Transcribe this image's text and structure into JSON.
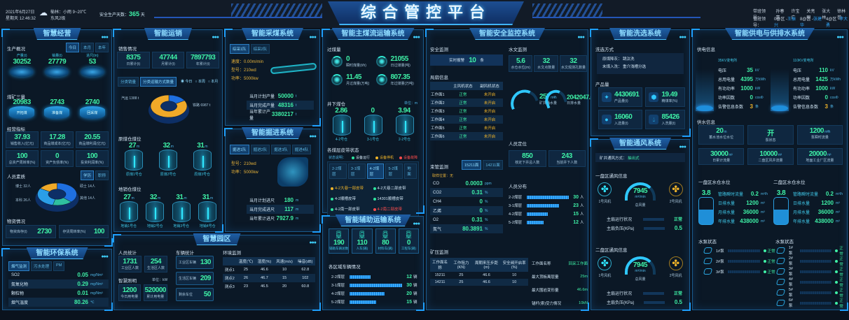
{
  "colors": {
    "accent": "#1ea0ff",
    "value": "#3ef0a6",
    "warn": "#f0b429",
    "fault": "#ff4d4d",
    "bg": "#0a121d"
  },
  "header": {
    "date": "2021年6月27日",
    "weekday_time": "星期天 12:46:32",
    "weather_icon": "rain-cloud-icon",
    "weather": "榆林：小雨   9~20℃",
    "wind": "东风2级",
    "safety_label": "安全生产天数：",
    "safety_days": "365",
    "safety_unit": "天",
    "title": "综合管控平台",
    "leaders_label": "带班领导：",
    "leaders": [
      "孙春富",
      "许宝广",
      "关亮明",
      "张大林",
      "徐林苟"
    ],
    "duty_label": "值班领导：",
    "duty": [
      {
        "area": "0@区 -",
        "name": "王振兴"
      },
      {
        "area": "8@区 -",
        "name": "张建华"
      },
      {
        "area": "4@区 -",
        "name": "李大勇"
      }
    ]
  },
  "mgmt": {
    "title": "智慧经营",
    "production": {
      "title": "生产概况",
      "tabs": [
        {
          "label": "今日",
          "active": true
        },
        {
          "label": "本月"
        },
        {
          "label": "本年"
        }
      ],
      "items": [
        {
          "label": "产量(t)",
          "value": "30252"
        },
        {
          "label": "销量(t)",
          "value": "27779"
        },
        {
          "label": "进尺(m)",
          "value": "53"
        }
      ]
    },
    "three": {
      "title": "煤矿三量",
      "items": [
        {
          "label": "开拓煤",
          "value": "20983"
        },
        {
          "label": "准备煤",
          "value": "2743"
        },
        {
          "label": "回采煤",
          "value": "2740"
        }
      ]
    },
    "indicators": {
      "title": "经营指标",
      "items": [
        {
          "value": "37.93",
          "label": "销售收入(亿元)"
        },
        {
          "value": "17.28",
          "label": "商品煤成本(亿元)"
        },
        {
          "value": "20.55",
          "label": "商品煤利润(亿元)"
        },
        {
          "value": "100",
          "label": "总资产周转率(%)"
        },
        {
          "value": "0",
          "label": "资产负债率(%)"
        },
        {
          "value": "100",
          "label": "投资利润率(%)"
        }
      ]
    },
    "staff": {
      "title": "人员素质",
      "tabs": [
        {
          "label": "学历",
          "active": true
        },
        {
          "label": "职称"
        }
      ],
      "pie": [
        {
          "label": "博士 32人",
          "value": 32,
          "color": "#1f6fe0"
        },
        {
          "label": "硕士 14人",
          "value": 14,
          "color": "#2fbf9f"
        },
        {
          "label": "本科 26人",
          "value": 26,
          "color": "#2a9ee8"
        },
        {
          "label": "其他 14人",
          "value": 14,
          "color": "#f0a928"
        }
      ]
    },
    "materials": {
      "title": "物资情况",
      "items": [
        {
          "label": "物资库存(t)",
          "value": "2730"
        },
        {
          "label": "存货周转率(%)",
          "value": "100"
        }
      ]
    }
  },
  "env": {
    "title": "智能环保系统",
    "tabs": [
      {
        "label": "烟气监测",
        "active": true
      },
      {
        "label": "污水处理"
      },
      {
        "label": "PM"
      }
    ],
    "rows": [
      {
        "label": "SO2",
        "value": "0.05",
        "unit": "mg/Nm³"
      },
      {
        "label": "氮氧化物",
        "value": "0.29",
        "unit": "mg/Nm³"
      },
      {
        "label": "颗粒物",
        "value": "0.01",
        "unit": "mg/Nm³"
      },
      {
        "label": "烟气温度",
        "value": "80.26",
        "unit": "℃"
      }
    ]
  },
  "sales": {
    "title": "智能运销",
    "sec": "销售情况",
    "tiles": [
      {
        "value": "8375",
        "label": "日累计(t)"
      },
      {
        "value": "47744",
        "label": "月累计(t)"
      },
      {
        "value": "7897793",
        "label": "年累计(t)"
      }
    ],
    "tabs": [
      {
        "label": "分类销量"
      },
      {
        "label": "分类运输方式数量",
        "active": true
      }
    ],
    "radios": [
      {
        "label": "今日",
        "checked": true
      },
      {
        "label": "本周"
      },
      {
        "label": "本月"
      }
    ],
    "pie": [
      {
        "label": "汽运 1388 t",
        "value": 1388,
        "color": "#1f6fe0"
      },
      {
        "label": "铁路 6987 t",
        "value": 6987,
        "color": "#f0a928"
      }
    ],
    "raw_bins": {
      "title": "原煤仓煤位",
      "items": [
        {
          "value": "27",
          "unit": "m",
          "label": "原煤1号仓"
        },
        {
          "value": "32",
          "unit": "m",
          "label": "原煤2号仓"
        },
        {
          "value": "31",
          "unit": "m",
          "label": "原煤3号仓"
        }
      ]
    },
    "local_bins": {
      "title": "地销仓煤位",
      "items": [
        {
          "value": "27",
          "unit": "m",
          "label": "地销1号仓"
        },
        {
          "value": "32",
          "unit": "m",
          "label": "地销2号仓"
        },
        {
          "value": "31",
          "unit": "m",
          "label": "地销3号仓"
        },
        {
          "value": "31",
          "unit": "m",
          "label": "地销4号仓"
        }
      ]
    }
  },
  "mining": {
    "title": "智能采煤系统",
    "tabs": [
      {
        "label": "综采1队",
        "active": true
      },
      {
        "label": "综采2队"
      }
    ],
    "specs": [
      "速度：0.00m/min",
      "型号：210wd",
      "功率：5000kw"
    ],
    "rows": [
      {
        "label": "当月计划产量",
        "value": "50000",
        "unit": "t"
      },
      {
        "label": "当月完成产量",
        "value": "48316",
        "unit": "t"
      },
      {
        "label": "当年累计产量",
        "value": "3380217",
        "unit": "t"
      }
    ]
  },
  "tunnel": {
    "title": "智能掘进系统",
    "tabs": [
      {
        "label": "掘进1队",
        "active": true
      },
      {
        "label": "掘进2队"
      },
      {
        "label": "掘进3队"
      },
      {
        "label": "掘进4队"
      }
    ],
    "specs": [
      "型号：210wd",
      "功率：5000kw"
    ],
    "rows": [
      {
        "label": "当月计划进尺",
        "value": "180",
        "unit": "m"
      },
      {
        "label": "当月完成进尺",
        "value": "117",
        "unit": "m"
      },
      {
        "label": "当年累计进尺",
        "value": "7927.9",
        "unit": "m"
      }
    ]
  },
  "park": {
    "title": "智慧园区",
    "people": {
      "title": "人员统计",
      "items": [
        {
          "value": "1731",
          "label": "工业区人数"
        },
        {
          "value": "254",
          "label": "生活区人数"
        }
      ]
    },
    "lighting": {
      "title": "智慧照明",
      "unit": "单位：kW",
      "items": [
        {
          "value": "1200",
          "label": "今日用电量"
        },
        {
          "value": "520000",
          "label": "累计用电量"
        }
      ]
    },
    "vehicles": {
      "title": "车辆统计",
      "items": [
        {
          "label": "工业区车辆",
          "value": "130"
        },
        {
          "label": "生活区车辆",
          "value": "209"
        },
        {
          "label": "剩余车位",
          "value": "50"
        }
      ]
    },
    "environment": {
      "title": "环境监测",
      "headers": [
        "",
        "温度(℃)",
        "湿度(%)",
        "风速(m/s)",
        "噪音(dB)"
      ],
      "rows": [
        [
          "测点1",
          "25",
          "46.6",
          "10",
          "62.8"
        ],
        [
          "测点2",
          "26",
          "46.7",
          "15",
          "102"
        ],
        [
          "测点3",
          "23",
          "46.5",
          "20",
          "60.8"
        ]
      ]
    }
  },
  "conveyor": {
    "title": "智能主煤流运输系统",
    "flow_title": "过煤量",
    "flow": [
      {
        "value": "0",
        "label": "瞬时煤量(t/h)"
      },
      {
        "value": "21055",
        "label": "日过煤量(吨)"
      },
      {
        "value": "11.45",
        "label": "月过煤量(万吨)"
      },
      {
        "value": "807.35",
        "label": "年过煤量(万吨)"
      }
    ],
    "bins_title": "井下煤仓",
    "bins_unit": "单位：m",
    "bins": [
      {
        "value": "2.86",
        "unit": "",
        "label": "4-2号仓"
      },
      {
        "value": "0",
        "unit": "",
        "label": "3-1号仓"
      },
      {
        "value": "3.94",
        "unit": "",
        "label": "2-2号仓"
      }
    ],
    "belt_title": "各煤层皮带状态",
    "legend_label": "状态说明：",
    "legend": [
      {
        "label": "设备运行",
        "status": "running"
      },
      {
        "label": "设备停机",
        "status": "stopped"
      },
      {
        "label": "设备故障",
        "status": "fault"
      }
    ],
    "status_colors": {
      "running": "#2ee6a0",
      "stopped": "#f0b429",
      "fault": "#ff4d4d"
    },
    "tabs": [
      {
        "label": "2-2煤层"
      },
      {
        "label": "3-1煤层"
      },
      {
        "label": "4-2煤层",
        "active": true
      },
      {
        "label": "5-2煤层"
      },
      {
        "label": "地面"
      }
    ],
    "belts": [
      {
        "label": "4-2大巷一部皮带",
        "status": "stopped"
      },
      {
        "label": "4-2大巷二部皮带",
        "status": "running"
      },
      {
        "label": "4-2顺槽皮带",
        "status": "running"
      },
      {
        "label": "14301顺槽皮带",
        "status": "running"
      },
      {
        "label": "4-2南一部皮带",
        "status": "running"
      },
      {
        "label": "4-2南二部皮带",
        "status": "fault"
      }
    ]
  },
  "aux": {
    "title": "智能辅助运输系统",
    "tiles": [
      {
        "value": "190",
        "label": "辅助车辆总数",
        "icon": "train-icon"
      },
      {
        "value": "110",
        "label": "人车(辆)",
        "icon": "train-icon"
      },
      {
        "value": "80",
        "label": "材料车(辆)",
        "icon": "train-icon"
      },
      {
        "value": "0",
        "label": "工程车(辆)",
        "icon": "train-icon"
      }
    ],
    "bars_title": "各区域车辆情况",
    "bars": [
      {
        "label": "2-2煤层",
        "value": 12,
        "unit": "辆"
      },
      {
        "label": "3-1煤层",
        "value": 30,
        "unit": "辆"
      },
      {
        "label": "4-2煤层",
        "value": 20,
        "unit": "辆"
      },
      {
        "label": "5-2煤层",
        "value": 15,
        "unit": "辆"
      }
    ]
  },
  "safety": {
    "title": "智能安全监控系统",
    "monitor_title": "安全监测",
    "alarm_label": "实时报警",
    "alarm_value": "10",
    "alarm_unit": "条",
    "fan_title": "局扇信息",
    "fan_headers": [
      "",
      "主风机状态",
      "副风机状态"
    ],
    "fans": [
      [
        "工作面1",
        "正常",
        "未开启"
      ],
      [
        "工作面2",
        "正常",
        "未开启"
      ],
      [
        "工作面3",
        "正常",
        "未开启"
      ],
      [
        "工作面4",
        "正常",
        "未开启"
      ],
      [
        "工作面5",
        "正常",
        "未开启"
      ],
      [
        "工作面6",
        "正常",
        "未开启"
      ]
    ],
    "tube_title": "束管监测",
    "tube_tabs": [
      {
        "label": "15211面",
        "active": true
      },
      {
        "label": "14211面"
      }
    ],
    "sample_label": "取样位置：无",
    "gases": [
      {
        "label": "CO",
        "value": "0.0003",
        "unit": "ppm"
      },
      {
        "label": "CO2",
        "value": "0.31",
        "unit": "%"
      },
      {
        "label": "CH4",
        "value": "0",
        "unit": "%"
      },
      {
        "label": "乙烯",
        "value": "0",
        "unit": "%"
      },
      {
        "label": "O2",
        "value": "0.31",
        "unit": "%"
      },
      {
        "label": "氮气",
        "value": "80.3891",
        "unit": "%"
      }
    ],
    "hydro_title": "水文监测",
    "hydro": [
      {
        "value": "5.6",
        "label": "水仓水位(m)"
      },
      {
        "value": "32",
        "label": "水文点数量"
      },
      {
        "value": "32",
        "label": "水文观测孔数量"
      }
    ],
    "inflow": {
      "value": "257",
      "unit": "m³/h",
      "label": "矿井涌水量"
    },
    "drain": {
      "value": "2042047.6",
      "unit": "m³",
      "label": "日排水量"
    },
    "position_title": "人员定位",
    "position": [
      {
        "value": "850",
        "label": "核定下井总人数"
      },
      {
        "value": "243",
        "label": "当前井下人数"
      }
    ],
    "dist_title": "人员分布",
    "dist": [
      {
        "label": "2-2煤层",
        "value": 30,
        "unit": "人"
      },
      {
        "label": "3-1煤层",
        "value": 23,
        "unit": "人"
      },
      {
        "label": "4-2煤层",
        "value": 15,
        "unit": "人"
      },
      {
        "label": "5-2煤层",
        "value": 12,
        "unit": "人"
      }
    ],
    "pressure_title": "矿压监测",
    "pressure_headers": [
      "工作面名称",
      "工作阻力(KN)",
      "周期来压步距(m)",
      "安全阀开启率(%)"
    ],
    "pressure_rows": [
      [
        "15211",
        "25",
        "46.6",
        "10"
      ],
      [
        "14211",
        "25",
        "46.6",
        "10"
      ]
    ],
    "pressure_info": [
      {
        "label": "工作面名称",
        "value": "回采工作面"
      },
      {
        "label": "最大顶板离层量",
        "value": "25m"
      },
      {
        "label": "最大围岩变形量",
        "value": "46.6m"
      },
      {
        "label": "锚杆(索)受力情况",
        "value": "10kN"
      }
    ]
  },
  "washing": {
    "title": "智能洗选系统",
    "mode_title": "洗选方式",
    "modes": [
      {
        "label": "原煤降灰：",
        "value": "跳汰洗"
      },
      {
        "label": "末煤入洗：",
        "value": "重介浅槽分选"
      }
    ],
    "product_title": "产品量",
    "tiles": [
      {
        "value": "4430691",
        "label": "产品量(t)",
        "icon": "product-icon"
      },
      {
        "value": "19.49",
        "label": "精煤率(%)",
        "icon": "box-icon"
      },
      {
        "value": "16060",
        "label": "入选量(t)",
        "icon": "bulb-icon"
      },
      {
        "value": "85426",
        "label": "入洗量(t)",
        "icon": "drop-icon"
      }
    ]
  },
  "vent": {
    "title": "智能通风系统",
    "mode_label": "矿井通风方式：",
    "mode_value": "抽出式",
    "zones": [
      {
        "title": "一盘区通风信息",
        "fan1": "1号风机",
        "fan2": "2号风机",
        "air": "7945",
        "air_unit": "m³/min",
        "air_label": "总风量",
        "run_label": "主扇运行状况",
        "run_value": "正常",
        "press_label": "主扇负压(KPa)",
        "press_value": "0.5"
      },
      {
        "title": "二盘区通风信息",
        "fan1": "1号风机",
        "fan2": "2号风机",
        "air": "7945",
        "air_unit": "m³/min",
        "air_label": "总风量",
        "run_label": "主扇运行状况",
        "run_value": "正常",
        "press_label": "主扇负压(KPa)",
        "press_value": "0.5"
      }
    ]
  },
  "power": {
    "title": "智能供电与供排水系统",
    "supply_title": "供电信息",
    "stations": [
      {
        "name": "35KV变电所",
        "rows": [
          {
            "label": "电压",
            "value": "35",
            "unit": "kV"
          },
          {
            "label": "总用电量",
            "value": "4395",
            "unit": "万kWh"
          },
          {
            "label": "有功功率",
            "value": "1000",
            "unit": "kW"
          },
          {
            "label": "功率因数",
            "value": "0",
            "unit": "cosΦ"
          },
          {
            "label": "告警信息条数",
            "value": "3",
            "unit": "条"
          }
        ]
      },
      {
        "name": "110KV变电所",
        "rows": [
          {
            "label": "电压",
            "value": "110",
            "unit": "kV"
          },
          {
            "label": "总用电量",
            "value": "1425",
            "unit": "万kWh"
          },
          {
            "label": "有功功率",
            "value": "1000",
            "unit": "kW"
          },
          {
            "label": "功率因数",
            "value": "0",
            "unit": "cosΦ"
          },
          {
            "label": "告警信息条数",
            "value": "3",
            "unit": "条"
          }
        ]
      }
    ],
    "water_title": "供水信息",
    "water": [
      {
        "value": "20",
        "unit": "m",
        "label": "蓄水池水位水位"
      },
      {
        "value": "开",
        "unit": "",
        "label": "泵状态"
      },
      {
        "value": "1200",
        "unit": "m³/h",
        "label": "泵瞬时流量"
      },
      {
        "value": "30000",
        "unit": "m³",
        "label": "日累计流量"
      },
      {
        "value": "10000",
        "unit": "m³",
        "label": "二盘区风井流量"
      },
      {
        "value": "20000",
        "unit": "m³",
        "label": "地面工业厂区流量"
      }
    ],
    "sumps": [
      {
        "title": "一盘区水仓水位",
        "level": "3.8",
        "rows": [
          {
            "label": "管路瞬时流量",
            "value": "0.2",
            "unit": "m³/h"
          },
          {
            "label": "日排水量",
            "value": "1200",
            "unit": "m³"
          },
          {
            "label": "月排水量",
            "value": "36000",
            "unit": "m³"
          },
          {
            "label": "年排水量",
            "value": "438000",
            "unit": "m³"
          }
        ]
      },
      {
        "title": "二盘区水仓水位",
        "level": "3.8",
        "rows": [
          {
            "label": "管路瞬时流量",
            "value": "0.2",
            "unit": "m³/h"
          },
          {
            "label": "日排水量",
            "value": "1200",
            "unit": "m³"
          },
          {
            "label": "月排水量",
            "value": "36000",
            "unit": "m³"
          },
          {
            "label": "年排水量",
            "value": "438000",
            "unit": "m³"
          }
        ]
      }
    ],
    "pump_title": "水泵状态",
    "pumps_left": [
      {
        "label": "1#泵",
        "status": "正常"
      },
      {
        "label": "2#泵",
        "status": "正常"
      },
      {
        "label": "3#泵",
        "status": "正常"
      }
    ],
    "pumps_right": [
      {
        "label": "1#泵",
        "status": "正常"
      },
      {
        "label": "2#泵",
        "status": "正常"
      },
      {
        "label": "3#泵",
        "status": "正常"
      },
      {
        "label": "4#泵",
        "status": "正常"
      },
      {
        "label": "5#泵",
        "status": "正常"
      },
      {
        "label": "6#泵",
        "status": "正常"
      }
    ]
  }
}
